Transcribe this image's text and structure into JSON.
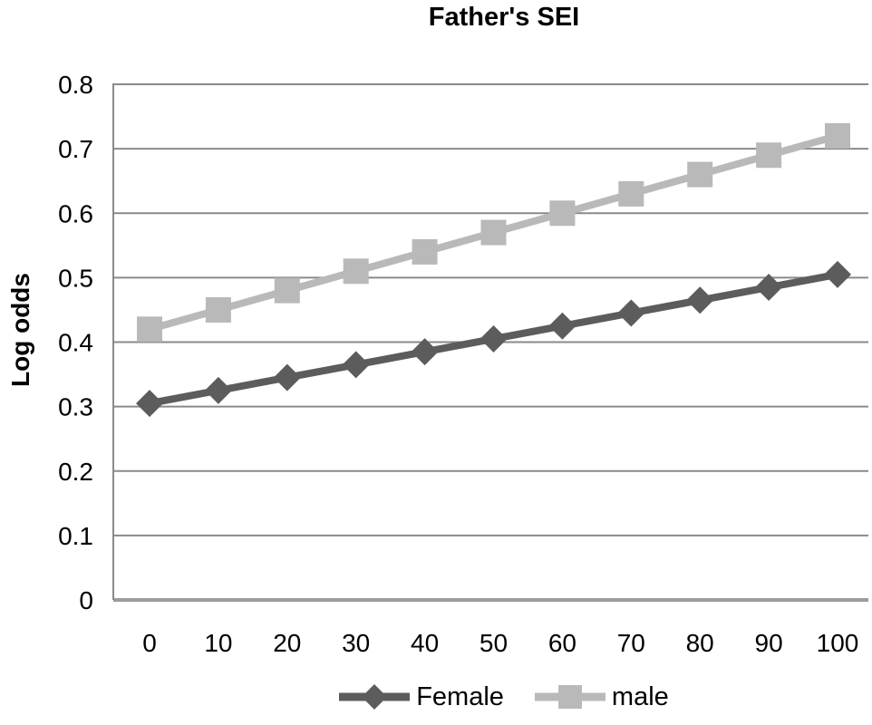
{
  "chart_data": {
    "type": "line",
    "title": "Father's SEI",
    "xlabel": "",
    "ylabel": "Log odds",
    "x": [
      0,
      10,
      20,
      30,
      40,
      50,
      60,
      70,
      80,
      90,
      100
    ],
    "xtick_labels": [
      "0",
      "10",
      "20",
      "30",
      "40",
      "50",
      "60",
      "70",
      "80",
      "90",
      "100"
    ],
    "yticks": [
      0,
      0.1,
      0.2,
      0.3,
      0.4,
      0.5,
      0.6,
      0.7,
      0.8
    ],
    "ytick_labels": [
      "0",
      "0.1",
      "0.2",
      "0.3",
      "0.4",
      "0.5",
      "0.6",
      "0.7",
      "0.8"
    ],
    "ylim": [
      0,
      0.8
    ],
    "grid": "horizontal",
    "legend_position": "bottom",
    "series": [
      {
        "name": "Female",
        "marker": "diamond",
        "color": "#5c5c5c",
        "values": [
          0.305,
          0.325,
          0.345,
          0.365,
          0.385,
          0.405,
          0.425,
          0.445,
          0.465,
          0.485,
          0.505
        ]
      },
      {
        "name": "male",
        "marker": "square",
        "color": "#b9b9b9",
        "values": [
          0.42,
          0.45,
          0.48,
          0.51,
          0.54,
          0.57,
          0.6,
          0.63,
          0.66,
          0.69,
          0.72
        ]
      }
    ],
    "colors": {
      "gridline": "#8a8a8a",
      "axis": "#9c9c9c",
      "text": "#000000"
    }
  }
}
